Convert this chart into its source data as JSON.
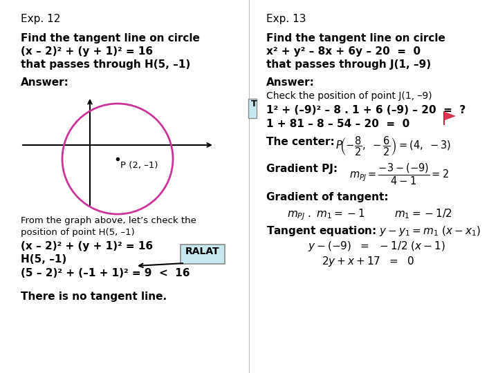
{
  "bg_color": "#ffffff",
  "left_col": {
    "title": "Exp. 12",
    "problem_line1": "Find the tangent line on circle",
    "problem_line2": "(x – 2)² + (y + 1)² = 16",
    "problem_line3": "that passes through H(5, –1)",
    "answer_label": "Answer:",
    "circle_color": "#cc3399",
    "dot_label": "P (2, –1)",
    "from_text_line1": "From the graph above, let’s check the",
    "from_text_line2": "position of point H(5, –1)",
    "eq_line1": "(x – 2)² + (y + 1)² = 16",
    "eq_line2": "H(5, –1)",
    "eq_line3": "(5 – 2)² + (–1 + 1)² = 9  <  16",
    "final_line": "There is no tangent line.",
    "ralat_label": "RALAT",
    "ralat_box_color": "#c8e8f0"
  },
  "right_col": {
    "title": "Exp. 13",
    "problem_line1": "Find the tangent line on circle",
    "problem_line2": "x² + y² – 8x + 6y – 20  =  0",
    "problem_line3": "that passes through J(1, –9)",
    "answer_label": "Answer:",
    "check_label": "Check the position of point J(1, –9)",
    "calc_line1": "1² + (–9)² – 8 . 1 + 6 (–9) – 20  =  ?",
    "calc_line2": "1 + 81 – 8 – 54 – 20  =  0",
    "center_label": "The center:",
    "gradient_pj_label": "Gradient PJ:",
    "gradient_tangent_label": "Gradient of tangent:",
    "grad_line": "mₚⱼ . m₁ = –1          m₁ = –1/2",
    "tangent_eq_label": "Tangent equation: y – y₁ = m₁ (x – x₁)",
    "tangent_line1": "y – (–9)  =  –1/2 (x – 1)",
    "tangent_line2": "2y + x + 17  =  0"
  }
}
